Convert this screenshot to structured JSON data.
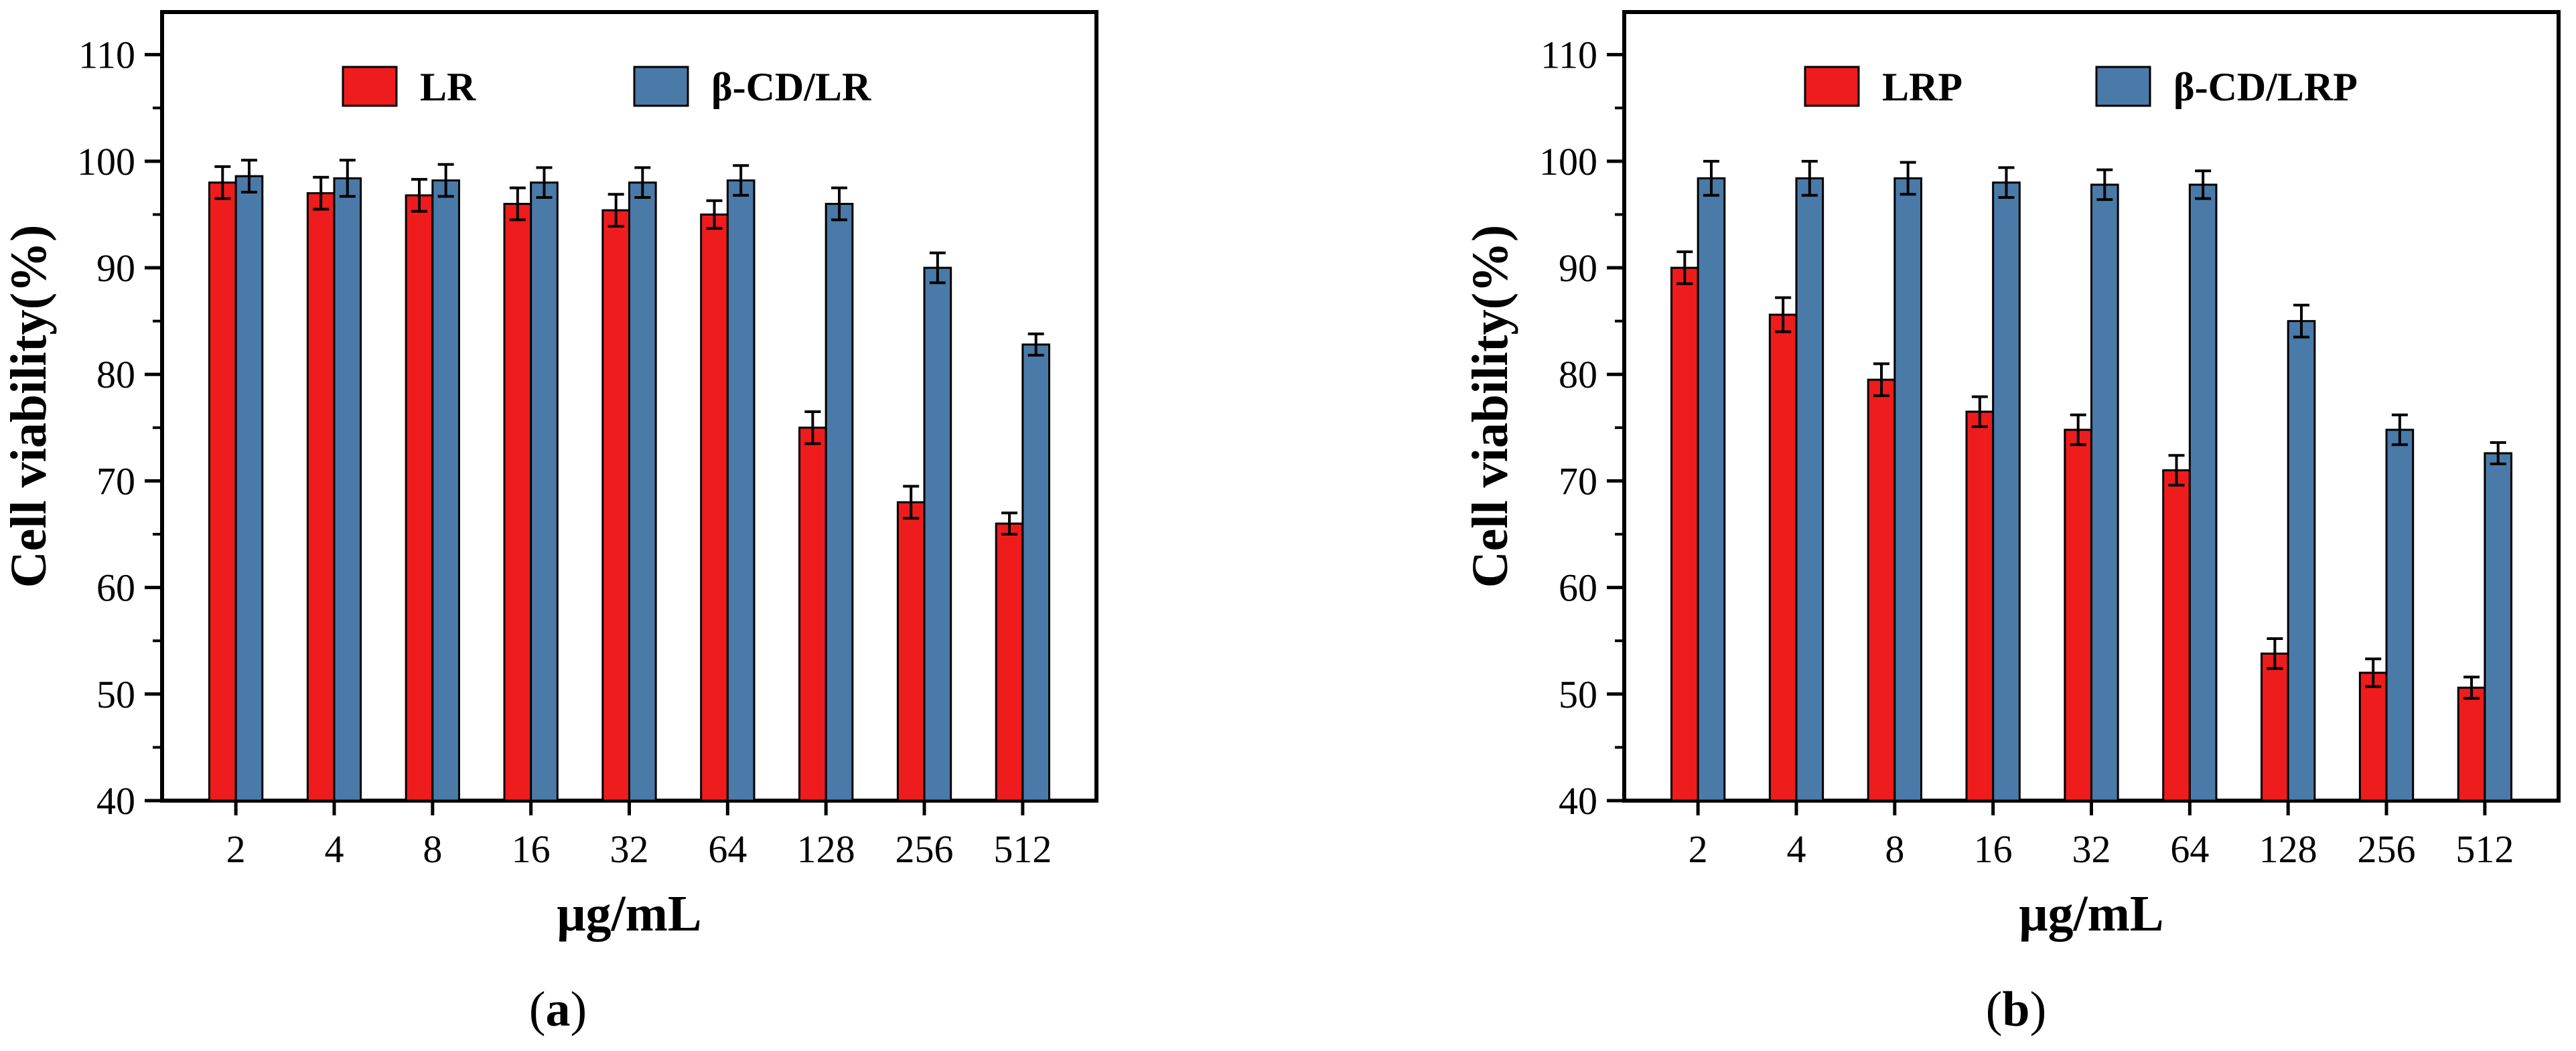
{
  "colors": {
    "LR_series": "#ee1c1c",
    "CD_series": "#4a7aa8",
    "axis": "#000000"
  },
  "chart_data": [
    {
      "type": "bar",
      "panel_label": "(a)",
      "panel_letter": "a",
      "xlabel": "μg/mL",
      "ylabel": "Cell viability(%)",
      "ylim": [
        40,
        114
      ],
      "yticks": [
        40,
        50,
        60,
        70,
        80,
        90,
        100,
        110
      ],
      "categories": [
        "2",
        "4",
        "8",
        "16",
        "32",
        "64",
        "128",
        "256",
        "512"
      ],
      "legend_position": "top",
      "series": [
        {
          "name": "LR",
          "color": "#ee1c1c",
          "values": [
            98.0,
            97.0,
            96.8,
            96.0,
            95.4,
            95.0,
            75.0,
            68.0,
            66.0
          ],
          "errors": [
            1.5,
            1.5,
            1.5,
            1.5,
            1.5,
            1.3,
            1.5,
            1.5,
            1.0
          ]
        },
        {
          "name": "β-CD/LR",
          "color": "#4a7aa8",
          "values": [
            98.6,
            98.4,
            98.2,
            98.0,
            98.0,
            98.2,
            96.0,
            90.0,
            82.8
          ],
          "errors": [
            1.5,
            1.7,
            1.5,
            1.4,
            1.4,
            1.4,
            1.5,
            1.4,
            1.0
          ]
        }
      ]
    },
    {
      "type": "bar",
      "panel_label": "(b)",
      "panel_letter": "b",
      "xlabel": "μg/mL",
      "ylabel": "Cell viability(%)",
      "ylim": [
        40,
        114
      ],
      "yticks": [
        40,
        50,
        60,
        70,
        80,
        90,
        100,
        110
      ],
      "categories": [
        "2",
        "4",
        "8",
        "16",
        "32",
        "64",
        "128",
        "256",
        "512"
      ],
      "legend_position": "top",
      "series": [
        {
          "name": "LRP",
          "color": "#ee1c1c",
          "values": [
            90.0,
            85.6,
            79.5,
            76.5,
            74.8,
            71.0,
            53.8,
            52.0,
            50.6
          ],
          "errors": [
            1.5,
            1.6,
            1.5,
            1.4,
            1.4,
            1.4,
            1.4,
            1.3,
            1.0
          ]
        },
        {
          "name": "β-CD/LRP",
          "color": "#4a7aa8",
          "values": [
            98.4,
            98.4,
            98.4,
            98.0,
            97.8,
            97.8,
            85.0,
            74.8,
            72.6
          ],
          "errors": [
            1.6,
            1.6,
            1.5,
            1.4,
            1.4,
            1.3,
            1.5,
            1.4,
            1.0
          ]
        }
      ]
    }
  ]
}
